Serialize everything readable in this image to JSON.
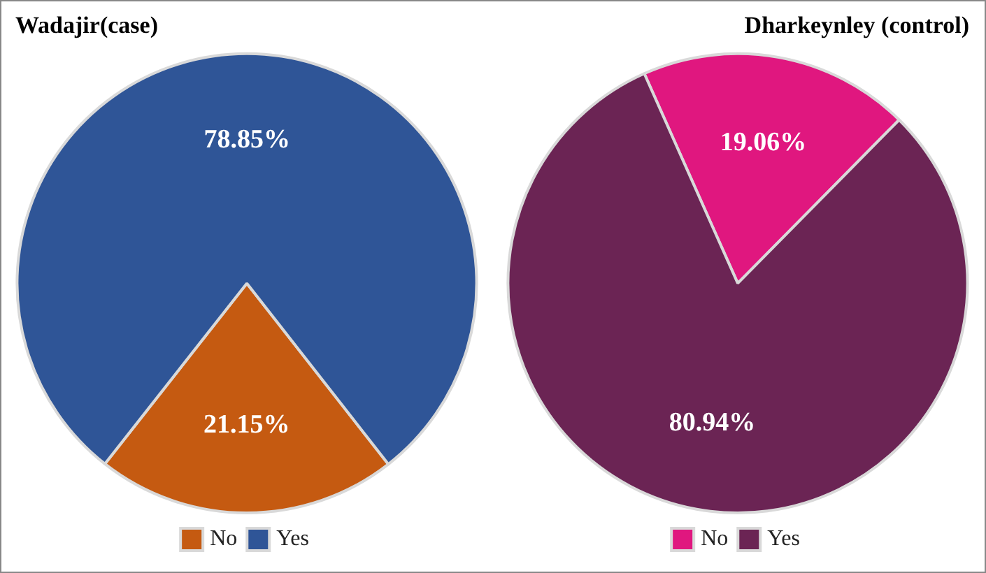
{
  "chart_data": [
    {
      "type": "pie",
      "title": "Wadajir(case)",
      "categories": [
        "No",
        "Yes"
      ],
      "values": [
        21.15,
        78.85
      ],
      "colors": [
        "#c55a11",
        "#2f5597"
      ],
      "value_labels": [
        "21.15%",
        "78.85%"
      ],
      "legend": "bottom"
    },
    {
      "type": "pie",
      "title": "Dharkeynley (control)",
      "categories": [
        "No",
        "Yes"
      ],
      "values": [
        19.06,
        80.94
      ],
      "colors": [
        "#e0177f",
        "#6b2454"
      ],
      "value_labels": [
        "19.06%",
        "80.94%"
      ],
      "legend": "bottom"
    }
  ]
}
